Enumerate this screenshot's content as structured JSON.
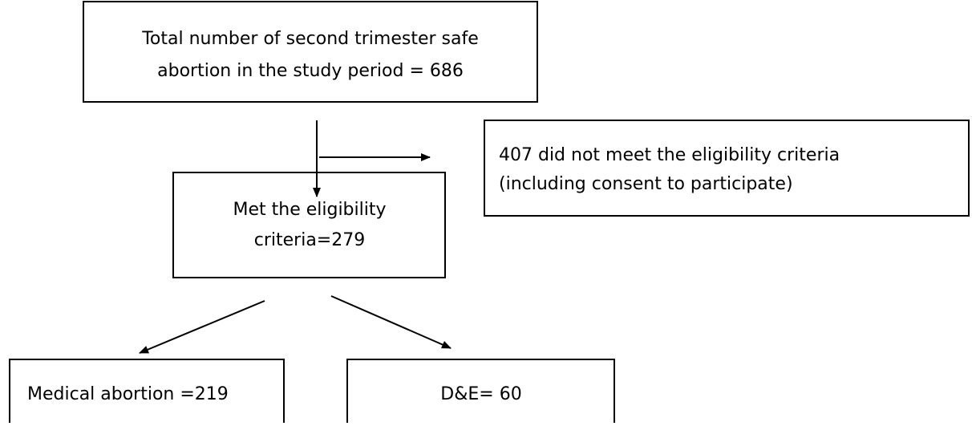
{
  "nodes": [
    {
      "label": [
        "Total number of second trimester safe",
        "abortion in the study period = 686"
      ]
    },
    {
      "label": [
        "407 did not meet the eligibility criteria",
        "(including consent to participate)"
      ]
    },
    {
      "label": [
        "Met the eligibility",
        "criteria=279"
      ]
    },
    {
      "label": [
        "Medical abortion =219"
      ]
    },
    {
      "label": [
        "D&E= 60"
      ]
    }
  ]
}
